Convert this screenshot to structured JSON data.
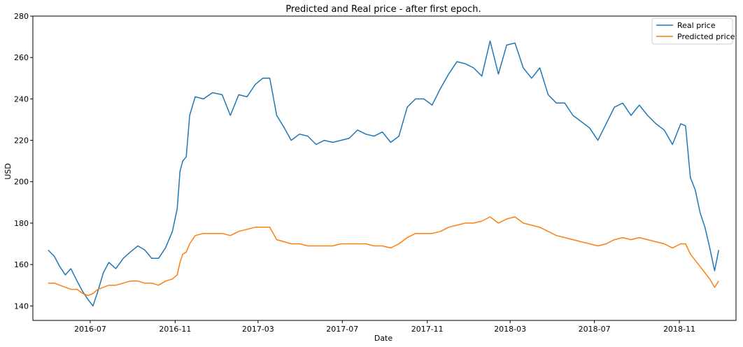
{
  "chart_data": {
    "type": "line",
    "title": "Predicted and Real price - after first epoch.",
    "xlabel": "Date",
    "ylabel": "USD",
    "xlim": [
      "2016-04-09",
      "2019-01-22"
    ],
    "ylim": [
      133,
      280
    ],
    "x_ticks": [
      "2016-07",
      "2016-11",
      "2017-03",
      "2017-07",
      "2017-11",
      "2018-03",
      "2018-07",
      "2018-11"
    ],
    "y_ticks": [
      140,
      160,
      180,
      200,
      220,
      240,
      260,
      280
    ],
    "grid": false,
    "legend": "top-right",
    "colors": {
      "real": "#1f77b4",
      "predicted": "#ff7f0e",
      "axis": "#000000"
    },
    "series": [
      {
        "name": "Real price",
        "x": [
          "2016-05-01",
          "2016-05-10",
          "2016-05-18",
          "2016-05-26",
          "2016-06-03",
          "2016-06-12",
          "2016-06-20",
          "2016-06-28",
          "2016-07-05",
          "2016-07-12",
          "2016-07-20",
          "2016-07-28",
          "2016-08-07",
          "2016-08-18",
          "2016-08-28",
          "2016-09-08",
          "2016-09-18",
          "2016-09-28",
          "2016-10-08",
          "2016-10-18",
          "2016-10-28",
          "2016-11-04",
          "2016-11-08",
          "2016-11-12",
          "2016-11-17",
          "2016-11-22",
          "2016-11-30",
          "2016-12-12",
          "2016-12-25",
          "2017-01-08",
          "2017-01-20",
          "2017-02-01",
          "2017-02-13",
          "2017-02-25",
          "2017-03-08",
          "2017-03-18",
          "2017-03-28",
          "2017-04-08",
          "2017-04-18",
          "2017-04-30",
          "2017-05-12",
          "2017-05-24",
          "2017-06-05",
          "2017-06-17",
          "2017-06-29",
          "2017-07-11",
          "2017-07-23",
          "2017-08-04",
          "2017-08-16",
          "2017-08-28",
          "2017-09-09",
          "2017-09-21",
          "2017-10-03",
          "2017-10-15",
          "2017-10-27",
          "2017-11-08",
          "2017-11-20",
          "2017-12-02",
          "2017-12-14",
          "2017-12-26",
          "2018-01-07",
          "2018-01-19",
          "2018-01-31",
          "2018-02-12",
          "2018-02-24",
          "2018-03-08",
          "2018-03-20",
          "2018-04-01",
          "2018-04-13",
          "2018-04-25",
          "2018-05-07",
          "2018-05-19",
          "2018-05-31",
          "2018-06-12",
          "2018-06-24",
          "2018-07-06",
          "2018-07-18",
          "2018-07-30",
          "2018-08-11",
          "2018-08-23",
          "2018-09-04",
          "2018-09-16",
          "2018-09-28",
          "2018-10-10",
          "2018-10-22",
          "2018-11-03",
          "2018-11-10",
          "2018-11-17",
          "2018-11-24",
          "2018-12-01",
          "2018-12-08",
          "2018-12-15",
          "2018-12-22",
          "2018-12-28"
        ],
        "values": [
          167,
          164,
          159,
          155,
          158,
          152,
          147,
          143,
          140,
          147,
          156,
          161,
          158,
          163,
          166,
          169,
          167,
          163,
          163,
          168,
          176,
          187,
          205,
          210,
          212,
          232,
          241,
          240,
          243,
          242,
          232,
          242,
          241,
          247,
          250,
          250,
          232,
          226,
          220,
          223,
          222,
          218,
          220,
          219,
          220,
          221,
          225,
          223,
          222,
          224,
          219,
          222,
          236,
          240,
          240,
          237,
          245,
          252,
          258,
          257,
          255,
          251,
          268,
          252,
          266,
          267,
          255,
          250,
          255,
          242,
          238,
          238,
          232,
          229,
          226,
          220,
          228,
          236,
          238,
          232,
          237,
          232,
          228,
          225,
          218,
          228,
          227,
          202,
          196,
          185,
          178,
          168,
          157,
          167
        ]
      },
      {
        "name": "Predicted price",
        "x": [
          "2016-05-01",
          "2016-05-10",
          "2016-05-18",
          "2016-05-26",
          "2016-06-03",
          "2016-06-12",
          "2016-06-20",
          "2016-06-28",
          "2016-07-05",
          "2016-07-12",
          "2016-07-20",
          "2016-07-28",
          "2016-08-07",
          "2016-08-18",
          "2016-08-28",
          "2016-09-08",
          "2016-09-18",
          "2016-09-28",
          "2016-10-08",
          "2016-10-18",
          "2016-10-28",
          "2016-11-04",
          "2016-11-08",
          "2016-11-12",
          "2016-11-17",
          "2016-11-22",
          "2016-11-30",
          "2016-12-12",
          "2016-12-25",
          "2017-01-08",
          "2017-01-20",
          "2017-02-01",
          "2017-02-13",
          "2017-02-25",
          "2017-03-08",
          "2017-03-18",
          "2017-03-28",
          "2017-04-08",
          "2017-04-18",
          "2017-04-30",
          "2017-05-12",
          "2017-05-24",
          "2017-06-05",
          "2017-06-17",
          "2017-06-29",
          "2017-07-11",
          "2017-07-23",
          "2017-08-04",
          "2017-08-16",
          "2017-08-28",
          "2017-09-09",
          "2017-09-21",
          "2017-10-03",
          "2017-10-15",
          "2017-10-27",
          "2017-11-08",
          "2017-11-20",
          "2017-12-02",
          "2017-12-14",
          "2017-12-26",
          "2018-01-07",
          "2018-01-19",
          "2018-01-31",
          "2018-02-12",
          "2018-02-24",
          "2018-03-08",
          "2018-03-20",
          "2018-04-01",
          "2018-04-13",
          "2018-04-25",
          "2018-05-07",
          "2018-05-19",
          "2018-05-31",
          "2018-06-12",
          "2018-06-24",
          "2018-07-06",
          "2018-07-18",
          "2018-07-30",
          "2018-08-11",
          "2018-08-23",
          "2018-09-04",
          "2018-09-16",
          "2018-09-28",
          "2018-10-10",
          "2018-10-22",
          "2018-11-03",
          "2018-11-10",
          "2018-11-17",
          "2018-11-24",
          "2018-12-01",
          "2018-12-08",
          "2018-12-15",
          "2018-12-22",
          "2018-12-28"
        ],
        "values": [
          151,
          151,
          150,
          149,
          148,
          148,
          146,
          145,
          146,
          148,
          149,
          150,
          150,
          151,
          152,
          152,
          151,
          151,
          150,
          152,
          153,
          155,
          161,
          165,
          166,
          170,
          174,
          175,
          175,
          175,
          174,
          176,
          177,
          178,
          178,
          178,
          172,
          171,
          170,
          170,
          169,
          169,
          169,
          169,
          170,
          170,
          170,
          170,
          169,
          169,
          168,
          170,
          173,
          175,
          175,
          175,
          176,
          178,
          179,
          180,
          180,
          181,
          183,
          180,
          182,
          183,
          180,
          179,
          178,
          176,
          174,
          173,
          172,
          171,
          170,
          169,
          170,
          172,
          173,
          172,
          173,
          172,
          171,
          170,
          168,
          170,
          170,
          165,
          162,
          159,
          156,
          153,
          149,
          152
        ]
      }
    ]
  }
}
